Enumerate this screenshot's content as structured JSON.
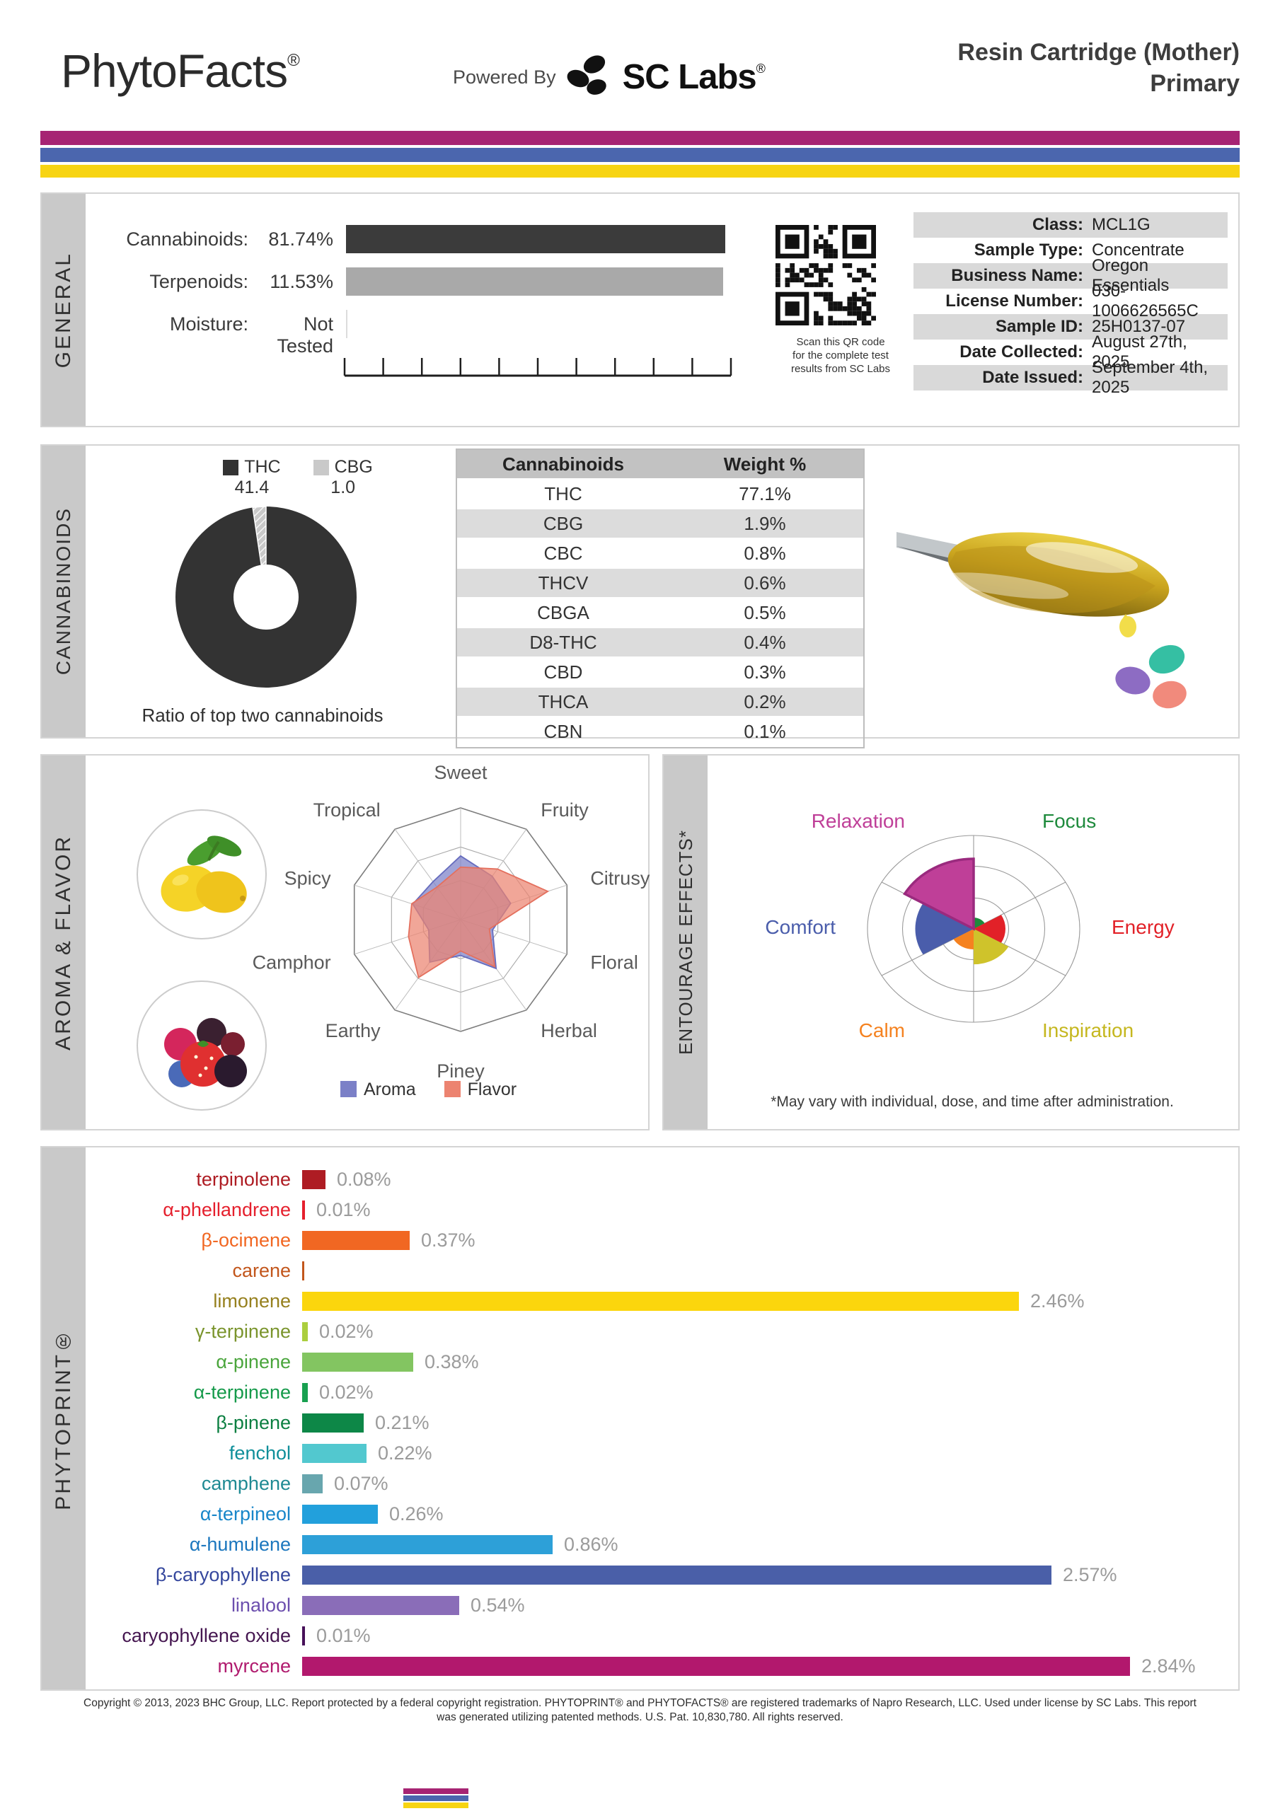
{
  "header": {
    "brand": "PhytoFacts",
    "brand_reg": "®",
    "powered_by": "Powered By",
    "logo_text": "SC Labs",
    "logo_reg": "®",
    "title_line1": "Resin Cartridge (Mother)",
    "title_line2": "Primary",
    "stripe_colors": [
      "#a62473",
      "#4b66ae",
      "#f7d413"
    ]
  },
  "general": {
    "section_label": "GENERAL",
    "qr_caption_lines": [
      "Scan this QR code",
      "for the complete test",
      "results from SC Labs"
    ],
    "info_rows": [
      {
        "label": "Class:",
        "value": "MCL1G"
      },
      {
        "label": "Sample Type:",
        "value": "Concentrate"
      },
      {
        "label": "Business Name:",
        "value": "Oregon Essentials"
      },
      {
        "label": "License Number:",
        "value": "030-1006626565C"
      },
      {
        "label": "Sample ID:",
        "value": "25H0137-07"
      },
      {
        "label": "Date Collected:",
        "value": "August 27th, 2025"
      },
      {
        "label": "Date Issued:",
        "value": "September 4th, 2025"
      }
    ]
  },
  "cannabinoids": {
    "section_label": "CANNABINOIDS"
  },
  "aroma_flavor": {
    "section_label": "AROMA & FLAVOR"
  },
  "entourage": {
    "section_label": "ENTOURAGE EFFECTS*",
    "footnote": "*May vary with individual, dose, and time after administration."
  },
  "phytoprint": {
    "section_label": "PHYTOPRINT®"
  },
  "footer": {
    "line1": "Copyright © 2013, 2023 BHC Group, LLC. Report protected by a federal copyright registration. PHYTOPRINT® and PHYTOFACTS® are registered trademarks of Napro Research, LLC. Used under license by SC Labs. This report",
    "line2": "was generated utilizing patented methods. U.S. Pat. 10,830,780. All rights reserved."
  },
  "chart_data": [
    {
      "id": "general_bars",
      "type": "bar",
      "orientation": "horizontal",
      "categories": [
        "Cannabinoids:",
        "Terpenoids:",
        "Moisture:"
      ],
      "value_labels": [
        "81.74%",
        "11.53%",
        "Not Tested"
      ],
      "values": [
        81.74,
        11.53,
        null
      ],
      "bar_fractions": [
        1.0,
        0.995,
        0
      ],
      "colors": [
        "#3b3b3b",
        "#a9a9a9",
        null
      ],
      "axis_ticks": 11
    },
    {
      "id": "cannabinoid_ratio",
      "type": "pie",
      "donut": true,
      "title": "Ratio of top two cannabinoids",
      "labels": [
        "THC",
        "CBG"
      ],
      "values": [
        41.4,
        1.0
      ],
      "colors": [
        "#333333",
        "#c9c9c9"
      ]
    },
    {
      "id": "cannabinoid_table",
      "type": "table",
      "headers": [
        "Cannabinoids",
        "Weight %"
      ],
      "rows": [
        [
          "THC",
          "77.1%"
        ],
        [
          "CBG",
          "1.9%"
        ],
        [
          "CBC",
          "0.8%"
        ],
        [
          "THCV",
          "0.6%"
        ],
        [
          "CBGA",
          "0.5%"
        ],
        [
          "D8-THC",
          "0.4%"
        ],
        [
          "CBD",
          "0.3%"
        ],
        [
          "THCA",
          "0.2%"
        ],
        [
          "CBN",
          "0.1%"
        ]
      ]
    },
    {
      "id": "aroma_flavor_radar",
      "type": "radar",
      "categories": [
        "Sweet",
        "Fruity",
        "Citrusy",
        "Floral",
        "Herbal",
        "Piney",
        "Earthy",
        "Camphor",
        "Spicy",
        "Tropical"
      ],
      "range": [
        0,
        10
      ],
      "grid_rings": [
        0.35,
        0.65,
        1.0
      ],
      "series": [
        {
          "name": "Aroma",
          "color": "#7b80c7",
          "stroke": "#666cbe",
          "values": [
            5.7,
            4.8,
            4.7,
            3.0,
            5.4,
            3.2,
            4.7,
            3.0,
            4.5,
            4.2
          ]
        },
        {
          "name": "Flavor",
          "color": "#ec8370",
          "stroke": "#e4705e",
          "values": [
            4.7,
            5.6,
            8.2,
            2.7,
            5.2,
            2.8,
            6.4,
            4.9,
            4.6,
            3.6
          ]
        }
      ]
    },
    {
      "id": "entourage_polar",
      "type": "polar",
      "range": [
        0,
        1
      ],
      "grid_rings": [
        0.33,
        0.67,
        1.0
      ],
      "categories": [
        {
          "name": "Focus",
          "value": 0.12,
          "color": "#1e8a3c",
          "label_color": "#1e8a3c"
        },
        {
          "name": "Energy",
          "value": 0.3,
          "color": "#e22128",
          "label_color": "#e22128"
        },
        {
          "name": "Inspiration",
          "value": 0.38,
          "color": "#cfc32b",
          "label_color": "#c5b71f"
        },
        {
          "name": "Calm",
          "value": 0.22,
          "color": "#f58220",
          "label_color": "#f58220"
        },
        {
          "name": "Comfort",
          "value": 0.55,
          "color": "#4a5dab",
          "label_color": "#4a5dab"
        },
        {
          "name": "Relaxation",
          "value": 0.75,
          "color": "#bf3f98",
          "label_color": "#bf3f98",
          "stroke": "#9a2a7e"
        }
      ]
    },
    {
      "id": "phytoprint_terpenes",
      "type": "bar",
      "orientation": "horizontal",
      "xlim": [
        0,
        2.9
      ],
      "items": [
        {
          "name": "terpinolene",
          "value": 0.08,
          "value_label": "0.08%",
          "color": "#ae1c23"
        },
        {
          "name": "α-phellandrene",
          "value": 0.01,
          "value_label": "0.01%",
          "color": "#e5202d"
        },
        {
          "name": "β-ocimene",
          "value": 0.37,
          "value_label": "0.37%",
          "color": "#f16722"
        },
        {
          "name": "carene",
          "value": 0.005,
          "value_label": "",
          "color": "#c2561c"
        },
        {
          "name": "limonene",
          "value": 2.46,
          "value_label": "2.46%",
          "color": "#fbd60d",
          "label_color": "#96801e"
        },
        {
          "name": "γ-terpinene",
          "value": 0.02,
          "value_label": "0.02%",
          "color": "#abce3e",
          "label_color": "#7a942c"
        },
        {
          "name": "α-pinene",
          "value": 0.38,
          "value_label": "0.38%",
          "color": "#83c561",
          "label_color": "#4aa53c"
        },
        {
          "name": "α-terpinene",
          "value": 0.02,
          "value_label": "0.02%",
          "color": "#18a050",
          "label_color": "#159a4a"
        },
        {
          "name": "β-pinene",
          "value": 0.21,
          "value_label": "0.21%",
          "color": "#0d8747",
          "label_color": "#0b7f41"
        },
        {
          "name": "fenchol",
          "value": 0.22,
          "value_label": "0.22%",
          "color": "#52c8cf",
          "label_color": "#0f8f9a"
        },
        {
          "name": "camphene",
          "value": 0.07,
          "value_label": "0.07%",
          "color": "#68a6ae",
          "label_color": "#1f8a93"
        },
        {
          "name": "α-terpineol",
          "value": 0.26,
          "value_label": "0.26%",
          "color": "#22a0dc",
          "label_color": "#1886c9"
        },
        {
          "name": "α-humulene",
          "value": 0.86,
          "value_label": "0.86%",
          "color": "#2da0d8",
          "label_color": "#1c77be"
        },
        {
          "name": "β-caryophyllene",
          "value": 2.57,
          "value_label": "2.57%",
          "color": "#4a5fa8",
          "label_color": "#35479d"
        },
        {
          "name": "linalool",
          "value": 0.54,
          "value_label": "0.54%",
          "color": "#8a6db8",
          "label_color": "#6c4fae"
        },
        {
          "name": "caryophyllene oxide",
          "value": 0.01,
          "value_label": "0.01%",
          "color": "#471059",
          "label_color": "#451650"
        },
        {
          "name": "myrcene",
          "value": 2.84,
          "value_label": "2.84%",
          "color": "#b2186d",
          "label_color": "#b01a6e"
        }
      ]
    }
  ]
}
